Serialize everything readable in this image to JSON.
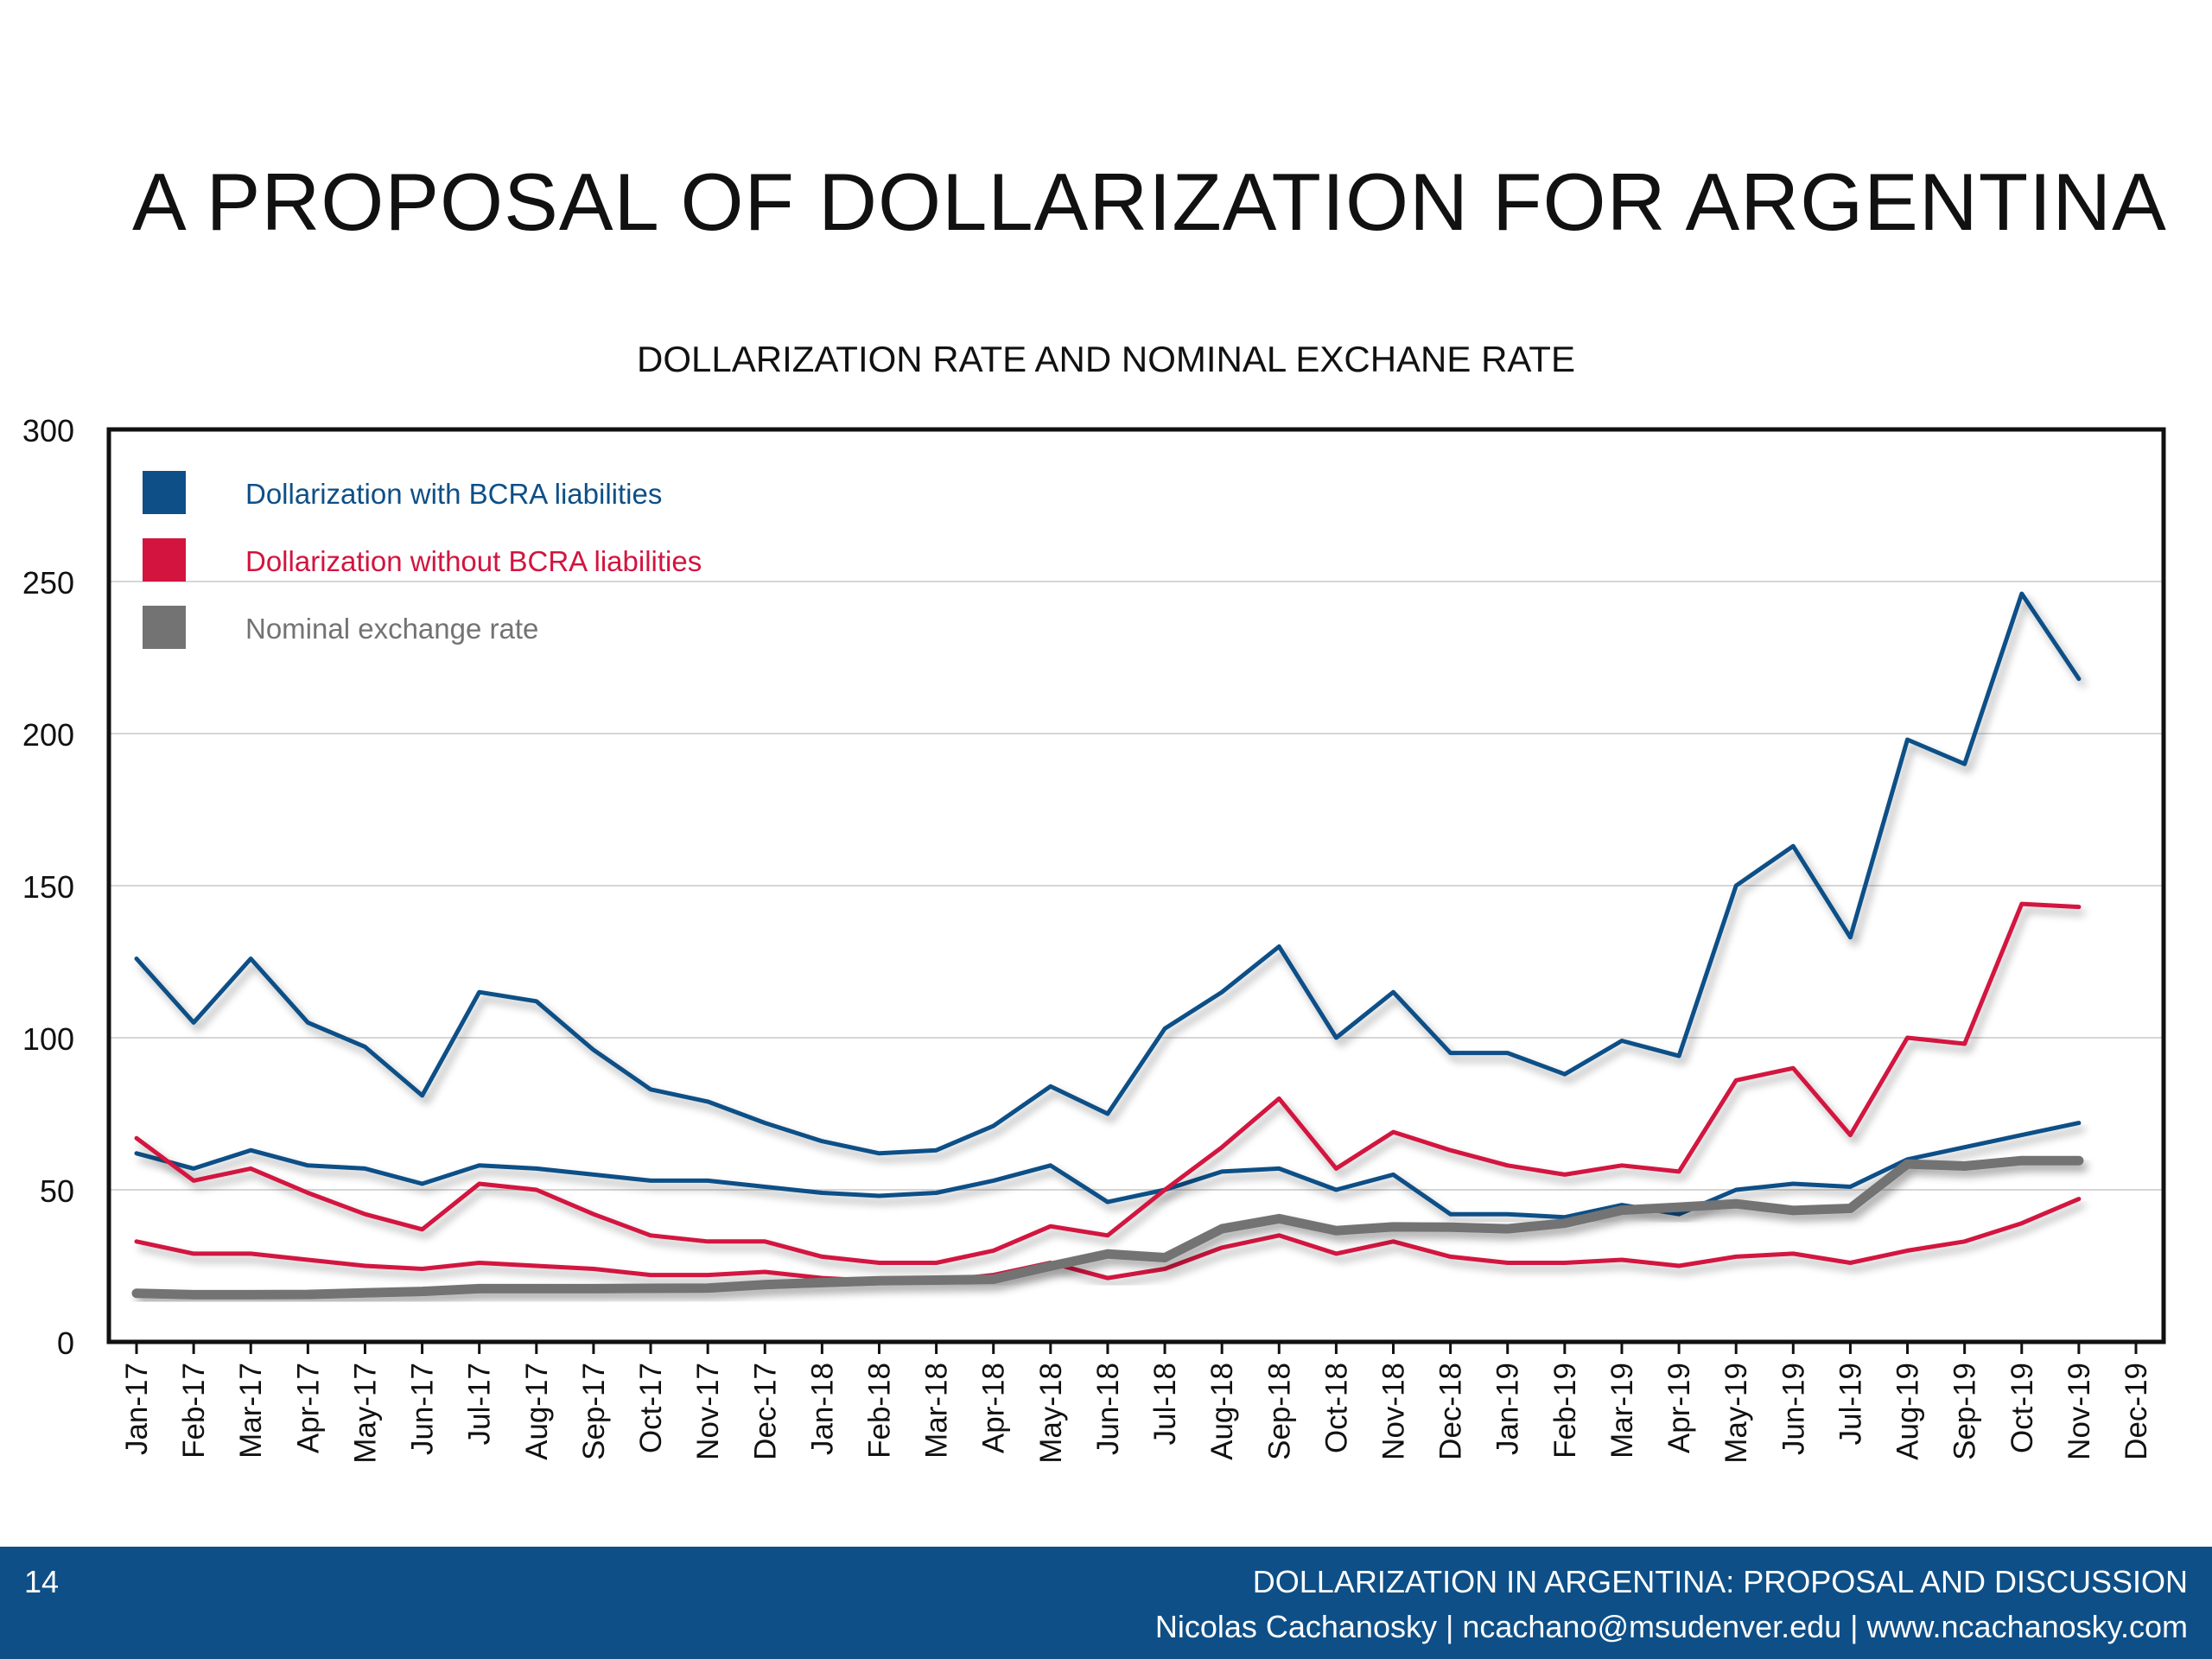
{
  "slide": {
    "title": "A PROPOSAL OF DOLLARIZATION FOR ARGENTINA",
    "page_number": "14",
    "footer_title": "DOLLARIZATION IN ARGENTINA: PROPOSAL AND DISCUSSION",
    "footer_credit": "Nicolas Cachanosky | ncachano@msudenver.edu | www.ncachanosky.com"
  },
  "colors": {
    "blue": "#0e4f87",
    "red": "#d2143f",
    "gray": "#737373"
  },
  "chart_data": {
    "type": "line",
    "title": "DOLLARIZATION RATE AND NOMINAL EXCHANE RATE",
    "xlabel": "",
    "ylabel": "",
    "ylim": [
      0,
      300
    ],
    "yticks": [
      0,
      50,
      100,
      150,
      200,
      250,
      300
    ],
    "grid": true,
    "legend_position": "top-left",
    "categories": [
      "Jan-17",
      "Feb-17",
      "Mar-17",
      "Apr-17",
      "May-17",
      "Jun-17",
      "Jul-17",
      "Aug-17",
      "Sep-17",
      "Oct-17",
      "Nov-17",
      "Dec-17",
      "Jan-18",
      "Feb-18",
      "Mar-18",
      "Apr-18",
      "May-18",
      "Jun-18",
      "Jul-18",
      "Aug-18",
      "Sep-18",
      "Oct-18",
      "Nov-18",
      "Dec-18",
      "Jan-19",
      "Feb-19",
      "Mar-19",
      "Apr-19",
      "May-19",
      "Jun-19",
      "Jul-19",
      "Aug-19",
      "Sep-19",
      "Oct-19",
      "Nov-19",
      "Dec-19"
    ],
    "legend": [
      {
        "label": "Dollarization with BCRA liabilities",
        "color": "#0e4f87"
      },
      {
        "label": "Dollarization without BCRA liabilities",
        "color": "#d2143f"
      },
      {
        "label": "Nominal exchange rate",
        "color": "#737373"
      }
    ],
    "series": [
      {
        "name": "Dollarization with BCRA liabilities",
        "color": "#0e4f87",
        "values": [
          126,
          105,
          126,
          105,
          97,
          81,
          115,
          112,
          96,
          83,
          79,
          72,
          66,
          62,
          63,
          71,
          84,
          75,
          103,
          115,
          130,
          100,
          115,
          95,
          95,
          88,
          99,
          94,
          150,
          163,
          133,
          198,
          190,
          246,
          218,
          null
        ]
      },
      {
        "name": "Dollarization with BCRA liabilities",
        "color": "#0e4f87",
        "values": [
          62,
          57,
          63,
          58,
          57,
          52,
          58,
          57,
          55,
          53,
          53,
          51,
          49,
          48,
          49,
          53,
          58,
          46,
          50,
          56,
          57,
          50,
          55,
          42,
          42,
          41,
          45,
          42,
          50,
          52,
          51,
          60,
          64,
          68,
          72,
          null
        ]
      },
      {
        "name": "Dollarization without BCRA liabilities",
        "color": "#d2143f",
        "values": [
          67,
          53,
          57,
          49,
          42,
          37,
          52,
          50,
          42,
          35,
          33,
          33,
          28,
          26,
          26,
          30,
          38,
          35,
          50,
          64,
          80,
          57,
          69,
          63,
          58,
          55,
          58,
          56,
          86,
          90,
          68,
          100,
          98,
          144,
          143,
          null
        ]
      },
      {
        "name": "Dollarization without BCRA liabilities",
        "color": "#d2143f",
        "values": [
          33,
          29,
          29,
          27,
          25,
          24,
          26,
          25,
          24,
          22,
          22,
          23,
          21,
          20,
          20,
          22,
          26,
          21,
          24,
          31,
          35,
          29,
          33,
          28,
          26,
          26,
          27,
          25,
          28,
          29,
          26,
          30,
          33,
          39,
          47,
          null
        ]
      },
      {
        "name": "Nominal exchange rate",
        "color": "#737373",
        "values": [
          16,
          15.5,
          15.5,
          15.6,
          16.1,
          16.6,
          17.5,
          17.5,
          17.5,
          17.6,
          17.7,
          18.8,
          19.5,
          20.1,
          20.3,
          20.6,
          24.9,
          28.9,
          27.7,
          37.2,
          40.5,
          36.6,
          37.8,
          37.7,
          37.2,
          39,
          43.3,
          44.3,
          45.4,
          43.2,
          43.9,
          58.5,
          57.8,
          59.6,
          59.6,
          null
        ]
      }
    ]
  }
}
